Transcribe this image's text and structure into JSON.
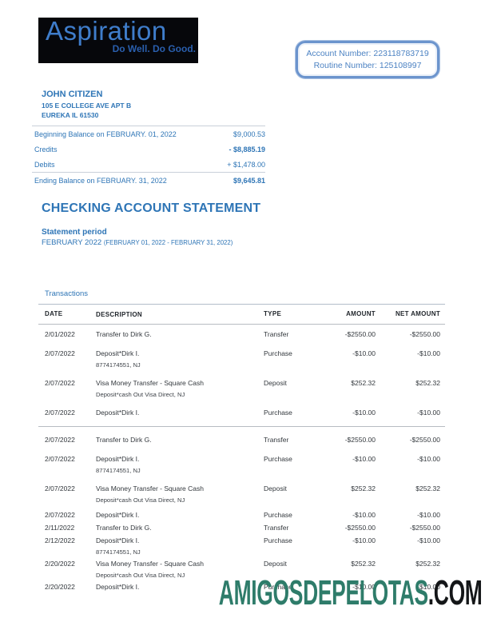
{
  "logo": {
    "wordmark": "Aspiration",
    "tagline": "Do Well. Do Good.",
    "background_color": "#06070b",
    "wordmark_color": "#3f7dcb",
    "tagline_color": "#2a5fae"
  },
  "account_box": {
    "account_number_line": "Account Number: 223118783719",
    "routing_number_line": "Routine Number: 125108997",
    "border_color": "#6b94cd",
    "text_color": "#4d83c3"
  },
  "recipient": {
    "name": "JOHN CITIZEN",
    "address_line1": "105 E COLLEGE AVE APT B",
    "address_line2": "EUREKA IL 61530"
  },
  "summary": {
    "rows": [
      {
        "label": "Beginning Balance on FEBRUARY. 01, 2022",
        "amount": "$9,000.53",
        "bold": false,
        "rule_below": false
      },
      {
        "label": "Credits",
        "amount": "- $8,885.19",
        "bold": true,
        "rule_below": false
      },
      {
        "label": "Debits",
        "amount": "+ $1,478.00",
        "bold": false,
        "rule_below": true
      },
      {
        "label": "Ending Balance on FEBRUARY. 31, 2022",
        "amount": "$9,645.81",
        "bold": true,
        "rule_below": false
      }
    ]
  },
  "statement": {
    "title": "CHECKING ACCOUNT STATEMENT",
    "period_label": "Statement period",
    "period_value": "FEBRUARY 2022",
    "period_range": "(FEBRUARY 01, 2022 - FEBRUARY 31, 2022)",
    "accent_color": "#2e75b6"
  },
  "transactions": {
    "section_label": "Transactions",
    "headers": [
      "DATE",
      "DESCRIPTION",
      "TYPE",
      "AMOUNT",
      "NET AMOUNT"
    ],
    "rows": [
      {
        "date": "2/01/2022",
        "description": "Transfer to Dirk G.",
        "sub": "",
        "type": "Transfer",
        "amount": "-$2550.00",
        "net": "-$2550.00",
        "style": "normal",
        "group_end": false
      },
      {
        "date": "2/07/2022",
        "description": "Deposit*Dirk I.",
        "sub": "8774174551, NJ",
        "type": "Purchase",
        "amount": "-$10.00",
        "net": "-$10.00",
        "style": "normal",
        "group_end": false
      },
      {
        "date": "2/07/2022",
        "description": "Visa Money Transfer - Square Cash",
        "sub": "Deposit*cash Out Visa Direct, NJ",
        "type": "Deposit",
        "amount": "$252.32",
        "net": "$252.32",
        "style": "normal",
        "group_end": false
      },
      {
        "date": "2/07/2022",
        "description": "Deposit*Dirk I.",
        "sub": "",
        "type": "Purchase",
        "amount": "-$10.00",
        "net": "-$10.00",
        "style": "normal",
        "group_end": true
      },
      {
        "date": "2/07/2022",
        "description": "Transfer to Dirk G.",
        "sub": "",
        "type": "Transfer",
        "amount": "-$2550.00",
        "net": "-$2550.00",
        "style": "normal",
        "group_end": false
      },
      {
        "date": "2/07/2022",
        "description": "Deposit*Dirk I.",
        "sub": "8774174551, NJ",
        "type": "Purchase",
        "amount": "-$10.00",
        "net": "-$10.00",
        "style": "normal",
        "group_end": false
      },
      {
        "date": "2/07/2022",
        "description": "Visa Money Transfer - Square Cash",
        "sub": "Deposit*cash Out Visa Direct, NJ",
        "type": "Deposit",
        "amount": "$252.32",
        "net": "$252.32",
        "style": "normal",
        "group_end": false
      },
      {
        "date": "2/07/2022",
        "description": "Deposit*Dirk I.",
        "sub": "",
        "type": "Purchase",
        "amount": "-$10.00",
        "net": "-$10.00",
        "style": "tight",
        "group_end": false
      },
      {
        "date": "2/11/2022",
        "description": "Transfer to Dirk G.",
        "sub": "",
        "type": "Transfer",
        "amount": "-$2550.00",
        "net": "-$2550.00",
        "style": "tight",
        "group_end": false
      },
      {
        "date": "2/12/2022",
        "description": "Deposit*Dirk I.",
        "sub": "8774174551, NJ",
        "type": "Purchase",
        "amount": "-$10.00",
        "net": "-$10.00",
        "style": "tight",
        "group_end": false
      },
      {
        "date": "2/20/2022",
        "description": "Visa Money Transfer - Square Cash",
        "sub": "Deposit*cash Out Visa Direct, NJ",
        "type": "Deposit",
        "amount": "$252.32",
        "net": "$252.32",
        "style": "tight",
        "group_end": false
      },
      {
        "date": "2/20/2022",
        "description": "Deposit*Dirk I.",
        "sub": "",
        "type": "Purchase",
        "amount": "-$10.00",
        "net": "-$10.00",
        "style": "tight",
        "group_end": false
      }
    ]
  },
  "watermark": {
    "main": "AMIGOSDEPELOTAS",
    "suffix": ".COM",
    "main_color": "#2e7c6a",
    "suffix_color": "#141618"
  }
}
